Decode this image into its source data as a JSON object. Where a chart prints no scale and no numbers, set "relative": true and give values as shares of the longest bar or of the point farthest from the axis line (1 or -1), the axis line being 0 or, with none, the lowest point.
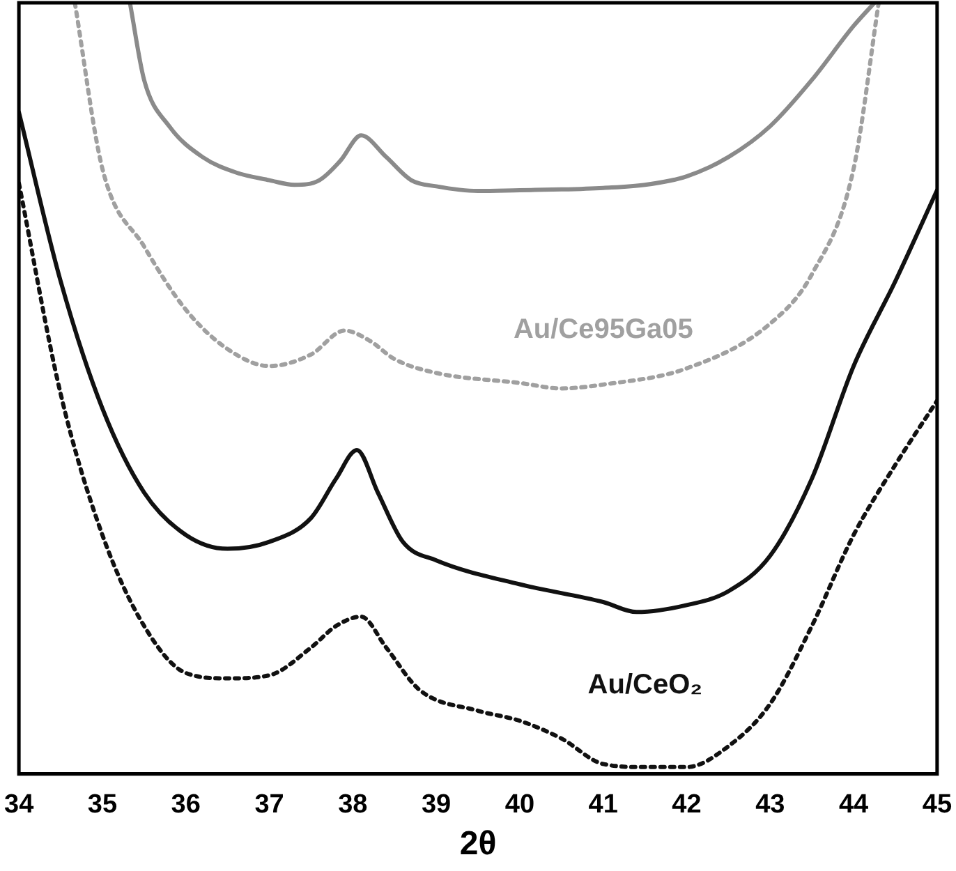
{
  "chart_data": {
    "type": "line",
    "relative": true,
    "xlabel": "2θ",
    "xlim": [
      34,
      45
    ],
    "xticks": [
      34,
      35,
      36,
      37,
      38,
      39,
      40,
      41,
      42,
      43,
      44,
      45
    ],
    "legend": false,
    "marker": "none",
    "grid": false,
    "series": [
      {
        "color": "#8a8a8a",
        "line_style": "solid",
        "x": [
          35.33,
          35.5,
          35.8,
          36.2,
          36.6,
          37.0,
          37.3,
          37.6,
          37.85,
          38.1,
          38.4,
          38.7,
          39.0,
          39.5,
          40.0,
          40.5,
          41.0,
          41.5,
          42.0,
          42.5,
          43.0,
          43.5,
          44.0,
          44.25
        ],
        "values": [
          1.0,
          0.9,
          0.84,
          0.8,
          0.78,
          0.77,
          0.764,
          0.77,
          0.795,
          0.828,
          0.8,
          0.77,
          0.762,
          0.756,
          0.757,
          0.758,
          0.76,
          0.764,
          0.775,
          0.8,
          0.84,
          0.9,
          0.97,
          1.0
        ]
      },
      {
        "name": "Au/Ce95Ga05",
        "color": "#a0a0a0",
        "line_style": "dotted",
        "x": [
          34.67,
          35.0,
          35.5,
          36.0,
          36.5,
          37.0,
          37.5,
          37.9,
          38.2,
          38.5,
          39.0,
          40.0,
          40.5,
          41.0,
          42.0,
          43.0,
          43.5,
          44.0,
          44.3
        ],
        "values": [
          1.0,
          0.785,
          0.684,
          0.602,
          0.551,
          0.529,
          0.544,
          0.575,
          0.562,
          0.538,
          0.52,
          0.507,
          0.5,
          0.505,
          0.526,
          0.584,
          0.648,
          0.785,
          1.0
        ]
      },
      {
        "color": "#111111",
        "line_style": "solid",
        "x": [
          34,
          34.5,
          35,
          35.5,
          36,
          36.5,
          37,
          37.5,
          37.8,
          38.05,
          38.3,
          38.6,
          39,
          40,
          41,
          41.4,
          42,
          42.5,
          43,
          43.5,
          44,
          44.5,
          45
        ],
        "values": [
          0.858,
          0.639,
          0.474,
          0.365,
          0.31,
          0.292,
          0.301,
          0.332,
          0.383,
          0.42,
          0.365,
          0.301,
          0.277,
          0.246,
          0.223,
          0.21,
          0.219,
          0.237,
          0.283,
          0.383,
          0.529,
          0.639,
          0.757
        ]
      },
      {
        "name": "Au/CeO₂",
        "color": "#111111",
        "line_style": "dotted",
        "x": [
          34,
          34.5,
          35,
          35.5,
          36,
          36.5,
          37,
          37.5,
          37.8,
          38.1,
          38.4,
          38.8,
          39.5,
          40,
          40.5,
          41,
          41.5,
          42,
          42.5,
          43,
          43.5,
          44,
          44.5,
          45
        ],
        "values": [
          0.766,
          0.493,
          0.31,
          0.192,
          0.131,
          0.124,
          0.128,
          0.164,
          0.192,
          0.204,
          0.164,
          0.109,
          0.082,
          0.069,
          0.046,
          0.013,
          0.009,
          0.009,
          0.036,
          0.091,
          0.192,
          0.31,
          0.401,
          0.484
        ]
      }
    ]
  }
}
